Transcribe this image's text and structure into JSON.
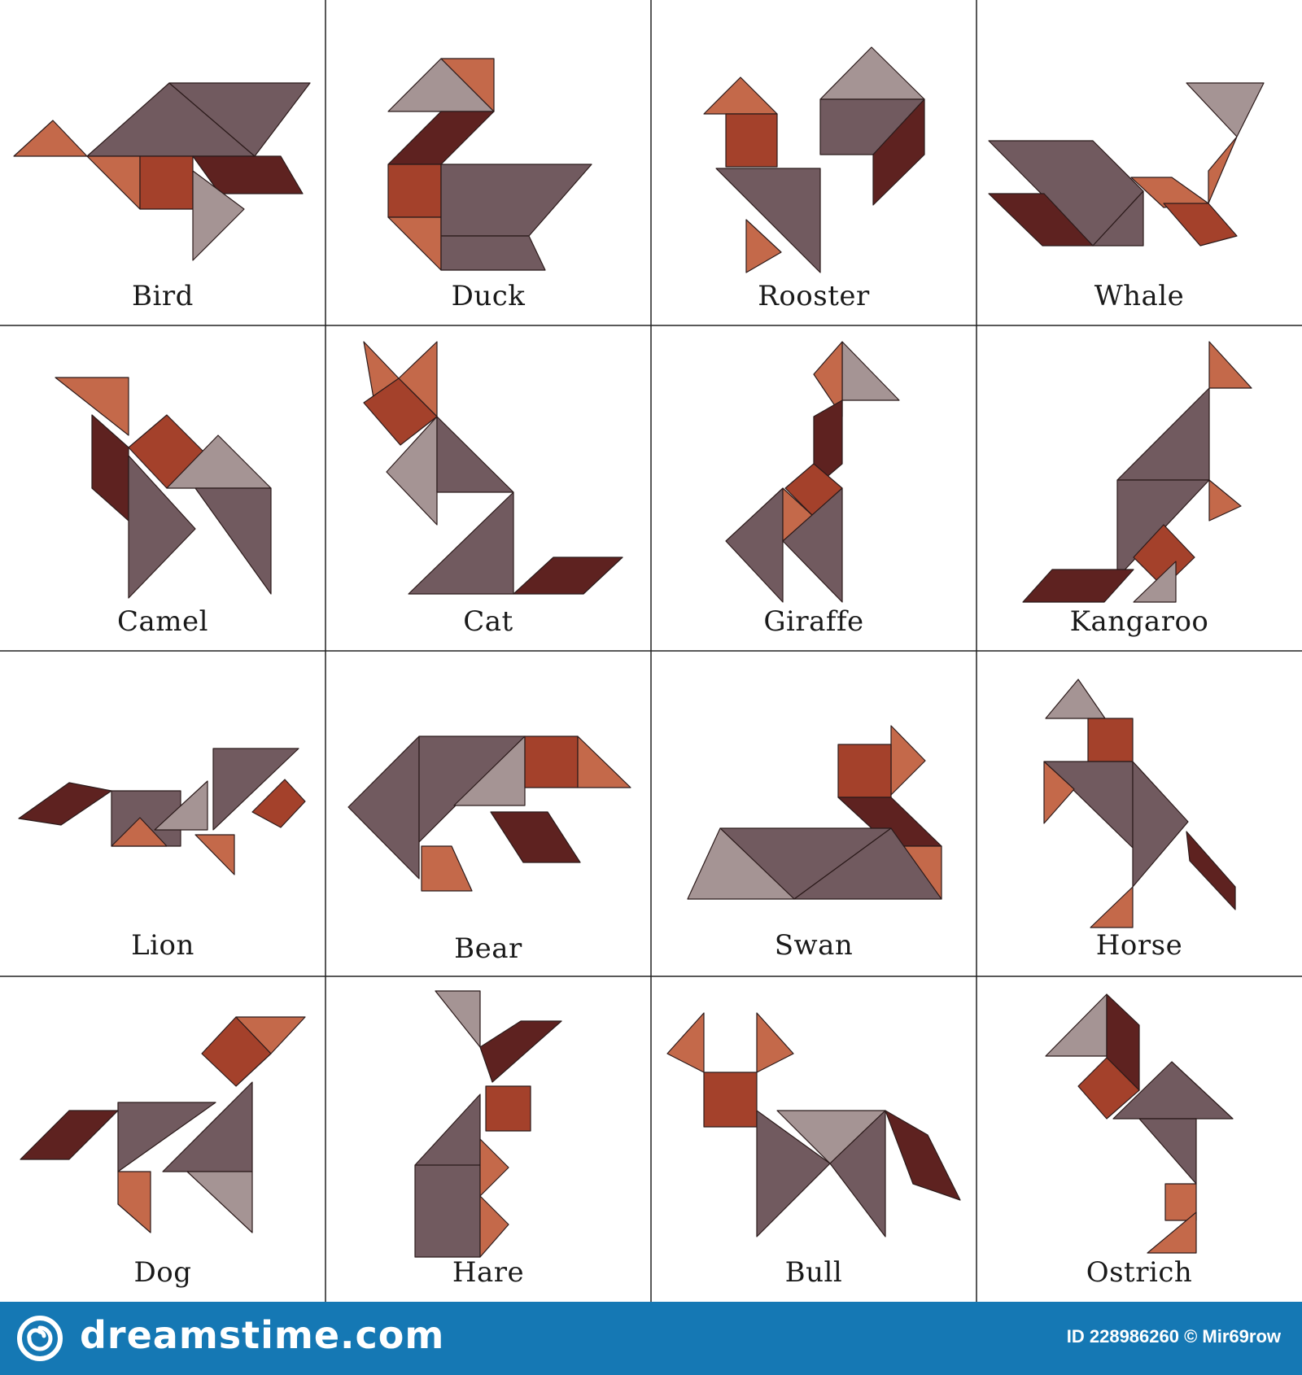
{
  "animals": [
    {
      "name": "Bird"
    },
    {
      "name": "Duck"
    },
    {
      "name": "Rooster"
    },
    {
      "name": "Whale"
    },
    {
      "name": "Camel"
    },
    {
      "name": "Cat"
    },
    {
      "name": "Giraffe"
    },
    {
      "name": "Kangaroo"
    },
    {
      "name": "Lion"
    },
    {
      "name": "Bear"
    },
    {
      "name": "Swan"
    },
    {
      "name": "Horse"
    },
    {
      "name": "Dog"
    },
    {
      "name": "Hare"
    },
    {
      "name": "Bull"
    },
    {
      "name": "Ostrich"
    }
  ],
  "colors": {
    "gray": "#715a5f",
    "light_gray": "#a59494",
    "orange": "#c4694a",
    "rust": "#a4412b",
    "dark": "#5e2220",
    "footer_bg": "#1578b4"
  },
  "footer": {
    "brand": "dreamstime.com",
    "credit": "ID 228986260 © Mir69row"
  }
}
